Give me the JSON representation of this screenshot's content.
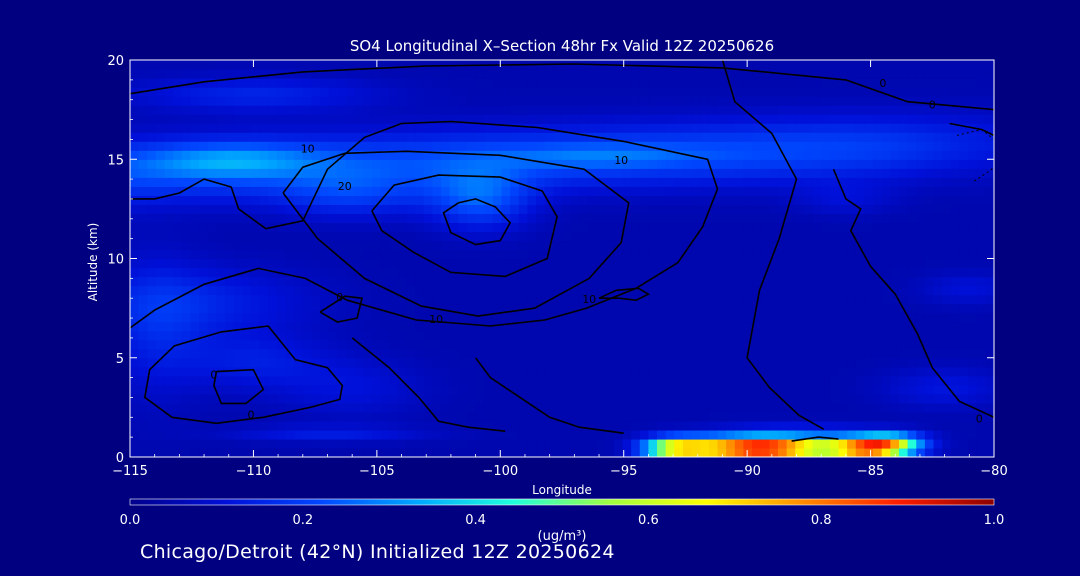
{
  "chart_data": {
    "type": "heatmap",
    "title": "SO4 Longitudinal X–Section 48hr  Fx Valid 12Z 20250626",
    "xlabel": "Longitude",
    "ylabel": "Altitude (km)",
    "xlim": [
      -115,
      -80
    ],
    "ylim": [
      0,
      20
    ],
    "xticks": [
      -115,
      -110,
      -105,
      -100,
      -95,
      -90,
      -85,
      -80
    ],
    "xtick_labels": [
      "−115",
      "−110",
      "−105",
      "−100",
      "−95",
      "−90",
      "−85",
      "−80"
    ],
    "yticks": [
      0,
      5,
      10,
      15,
      20
    ],
    "ytick_labels": [
      "0",
      "5",
      "10",
      "15",
      "20"
    ],
    "colorbar": {
      "label": "(ug/m³)",
      "range": [
        0,
        1
      ],
      "ticks": [
        "0.0",
        "0.2",
        "0.4",
        "0.6",
        "0.8",
        "1.0"
      ],
      "colors": [
        "#00008c",
        "#0010d8",
        "#0048ff",
        "#00a8ff",
        "#20ffdc",
        "#a0ff40",
        "#ffff00",
        "#ff8c00",
        "#ff1c00",
        "#8c0000"
      ]
    },
    "grid": "100x44 cells, x=-115..-80 lon (0.35 deg), y=0..20 km (~0.455 km); concentration sampled from figure",
    "contour_labels": [
      {
        "text": "10",
        "lon": -107.8,
        "alt": 15.5
      },
      {
        "text": "20",
        "lon": -106.3,
        "alt": 13.6
      },
      {
        "text": "10",
        "lon": -95.1,
        "alt": 14.9
      },
      {
        "text": "0",
        "lon": -82.5,
        "alt": 17.7
      },
      {
        "text": "0",
        "lon": -106.5,
        "alt": 8.0
      },
      {
        "text": "10",
        "lon": -102.6,
        "alt": 6.9
      },
      {
        "text": "10",
        "lon": -96.4,
        "alt": 7.9
      },
      {
        "text": "0",
        "lon": -111.6,
        "alt": 4.1
      },
      {
        "text": "0",
        "lon": -110.1,
        "alt": 2.1
      },
      {
        "text": "0",
        "lon": -84.5,
        "alt": 18.8
      },
      {
        "text": "0",
        "lon": -80.6,
        "alt": 1.9
      }
    ]
  },
  "footer": "Chicago/Detroit (42°N) Initialized 12Z 20250624"
}
